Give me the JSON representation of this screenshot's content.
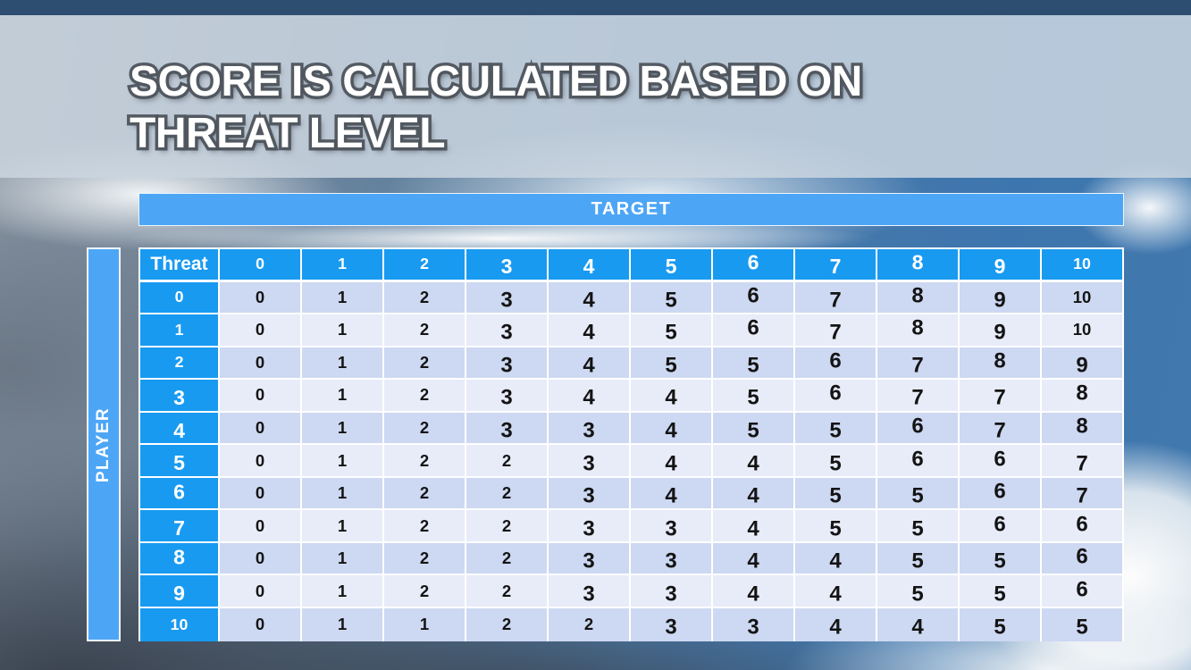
{
  "slide": {
    "title_line1": "SCORE IS CALCULATED BASED ON",
    "title_line2": "THREAT LEVEL"
  },
  "table": {
    "target_label": "TARGET",
    "player_label": "PLAYER",
    "corner_label": "Threat",
    "column_headers": [
      "0",
      "1",
      "2",
      "3",
      "4",
      "5",
      "6",
      "7",
      "8",
      "9",
      "10"
    ],
    "rows": [
      {
        "threat": "0",
        "values": [
          "0",
          "1",
          "2",
          "3",
          "4",
          "5",
          "6",
          "7",
          "8",
          "9",
          "10"
        ]
      },
      {
        "threat": "1",
        "values": [
          "0",
          "1",
          "2",
          "3",
          "4",
          "5",
          "6",
          "7",
          "8",
          "9",
          "10"
        ]
      },
      {
        "threat": "2",
        "values": [
          "0",
          "1",
          "2",
          "3",
          "4",
          "5",
          "5",
          "6",
          "7",
          "8",
          "9"
        ]
      },
      {
        "threat": "3",
        "values": [
          "0",
          "1",
          "2",
          "3",
          "4",
          "4",
          "5",
          "6",
          "7",
          "7",
          "8"
        ]
      },
      {
        "threat": "4",
        "values": [
          "0",
          "1",
          "2",
          "3",
          "3",
          "4",
          "5",
          "5",
          "6",
          "7",
          "8"
        ]
      },
      {
        "threat": "5",
        "values": [
          "0",
          "1",
          "2",
          "2",
          "3",
          "4",
          "4",
          "5",
          "6",
          "6",
          "7"
        ]
      },
      {
        "threat": "6",
        "values": [
          "0",
          "1",
          "2",
          "2",
          "3",
          "4",
          "4",
          "5",
          "5",
          "6",
          "7"
        ]
      },
      {
        "threat": "7",
        "values": [
          "0",
          "1",
          "2",
          "2",
          "3",
          "3",
          "4",
          "5",
          "5",
          "6",
          "6"
        ]
      },
      {
        "threat": "8",
        "values": [
          "0",
          "1",
          "2",
          "2",
          "3",
          "3",
          "4",
          "4",
          "5",
          "5",
          "6"
        ]
      },
      {
        "threat": "9",
        "values": [
          "0",
          "1",
          "2",
          "2",
          "3",
          "3",
          "4",
          "4",
          "5",
          "5",
          "6"
        ]
      },
      {
        "threat": "10",
        "values": [
          "0",
          "1",
          "1",
          "2",
          "2",
          "3",
          "3",
          "4",
          "4",
          "5",
          "5"
        ]
      }
    ]
  },
  "colors": {
    "top_bar": "#2e4e71",
    "title_band": "#cbd5e0",
    "banner_blue": "#4da6f5",
    "header_blue": "#189af1",
    "row_even": "#cdd8f2",
    "row_odd": "#e8ecf9",
    "cell_border": "#ffffff",
    "body_text": "#141414",
    "header_text": "#ffffff"
  }
}
